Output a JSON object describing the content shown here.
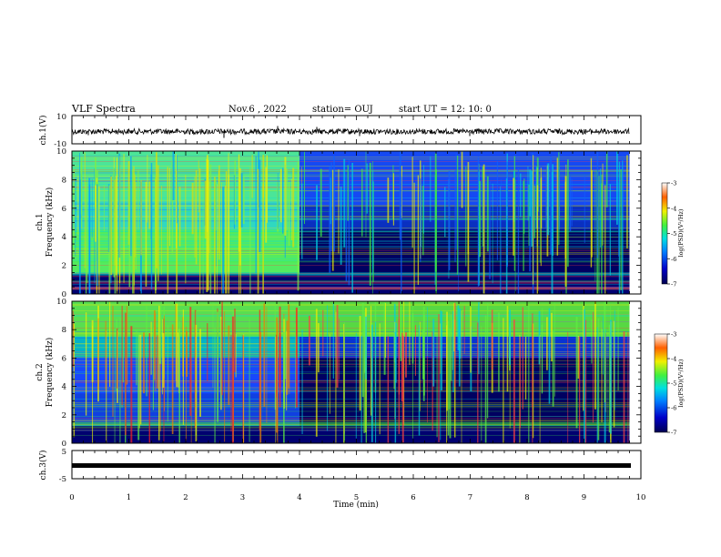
{
  "header": {
    "title": "VLF Spectra",
    "date": "Nov.6 , 2022",
    "station": "station= OUJ",
    "start": "start UT = 12: 10: 0"
  },
  "colors": {
    "spectrogram_low": "#000055",
    "spectrogram_mid": "#1a3cff",
    "spectrogram_cyan": "#00d8d0",
    "spectrogram_green": "#60f000",
    "spectrogram_yellow": "#f0f000",
    "spectrogram_red": "#e00000",
    "trace": "#000000"
  },
  "chart_data": [
    {
      "id": "ch1-waveform",
      "type": "line",
      "ylabel": "ch.1(V)",
      "ylim": [
        -10,
        10
      ],
      "yticks": [
        "10",
        "-10"
      ],
      "xlim": [
        0,
        10
      ],
      "approx_level_v": -1.3
    },
    {
      "id": "ch1-spectrogram",
      "type": "heatmap",
      "ylabel": "ch.1\nFrequency (kHz)",
      "ylim": [
        0,
        10
      ],
      "yticks": [
        "0",
        "2",
        "4",
        "6",
        "8",
        "10"
      ],
      "xlim": [
        0,
        10
      ],
      "data_end_min": 9.8,
      "regime_change_min": 4.0,
      "colorbar": {
        "label": "log(PSD)(V²/Hz)",
        "range": [
          -7,
          -3
        ],
        "ticks": [
          "-3",
          "-4",
          "-5",
          "-6",
          "-7"
        ]
      }
    },
    {
      "id": "ch2-spectrogram",
      "type": "heatmap",
      "ylabel": "ch.2\nFrequency (kHz)",
      "ylim": [
        0,
        10
      ],
      "yticks": [
        "0",
        "2",
        "4",
        "6",
        "8",
        "10"
      ],
      "xlim": [
        0,
        10
      ],
      "data_end_min": 9.8,
      "regime_change_min": 4.0,
      "colorbar": {
        "label": "log(PSD)(V²/Hz)",
        "range": [
          -7,
          -3
        ],
        "ticks": [
          "-3",
          "-4",
          "-5",
          "-6",
          "-7"
        ]
      }
    },
    {
      "id": "ch3-waveform",
      "type": "line",
      "ylabel": "ch.3(V)",
      "ylim": [
        -5,
        5
      ],
      "yticks": [
        "5",
        "-5"
      ],
      "xlim": [
        0,
        10
      ],
      "approx_level_v": -1.0
    }
  ],
  "xaxis": {
    "label": "Time (min)",
    "ticks": [
      "0",
      "1",
      "2",
      "3",
      "4",
      "5",
      "6",
      "7",
      "8",
      "9",
      "10"
    ]
  }
}
